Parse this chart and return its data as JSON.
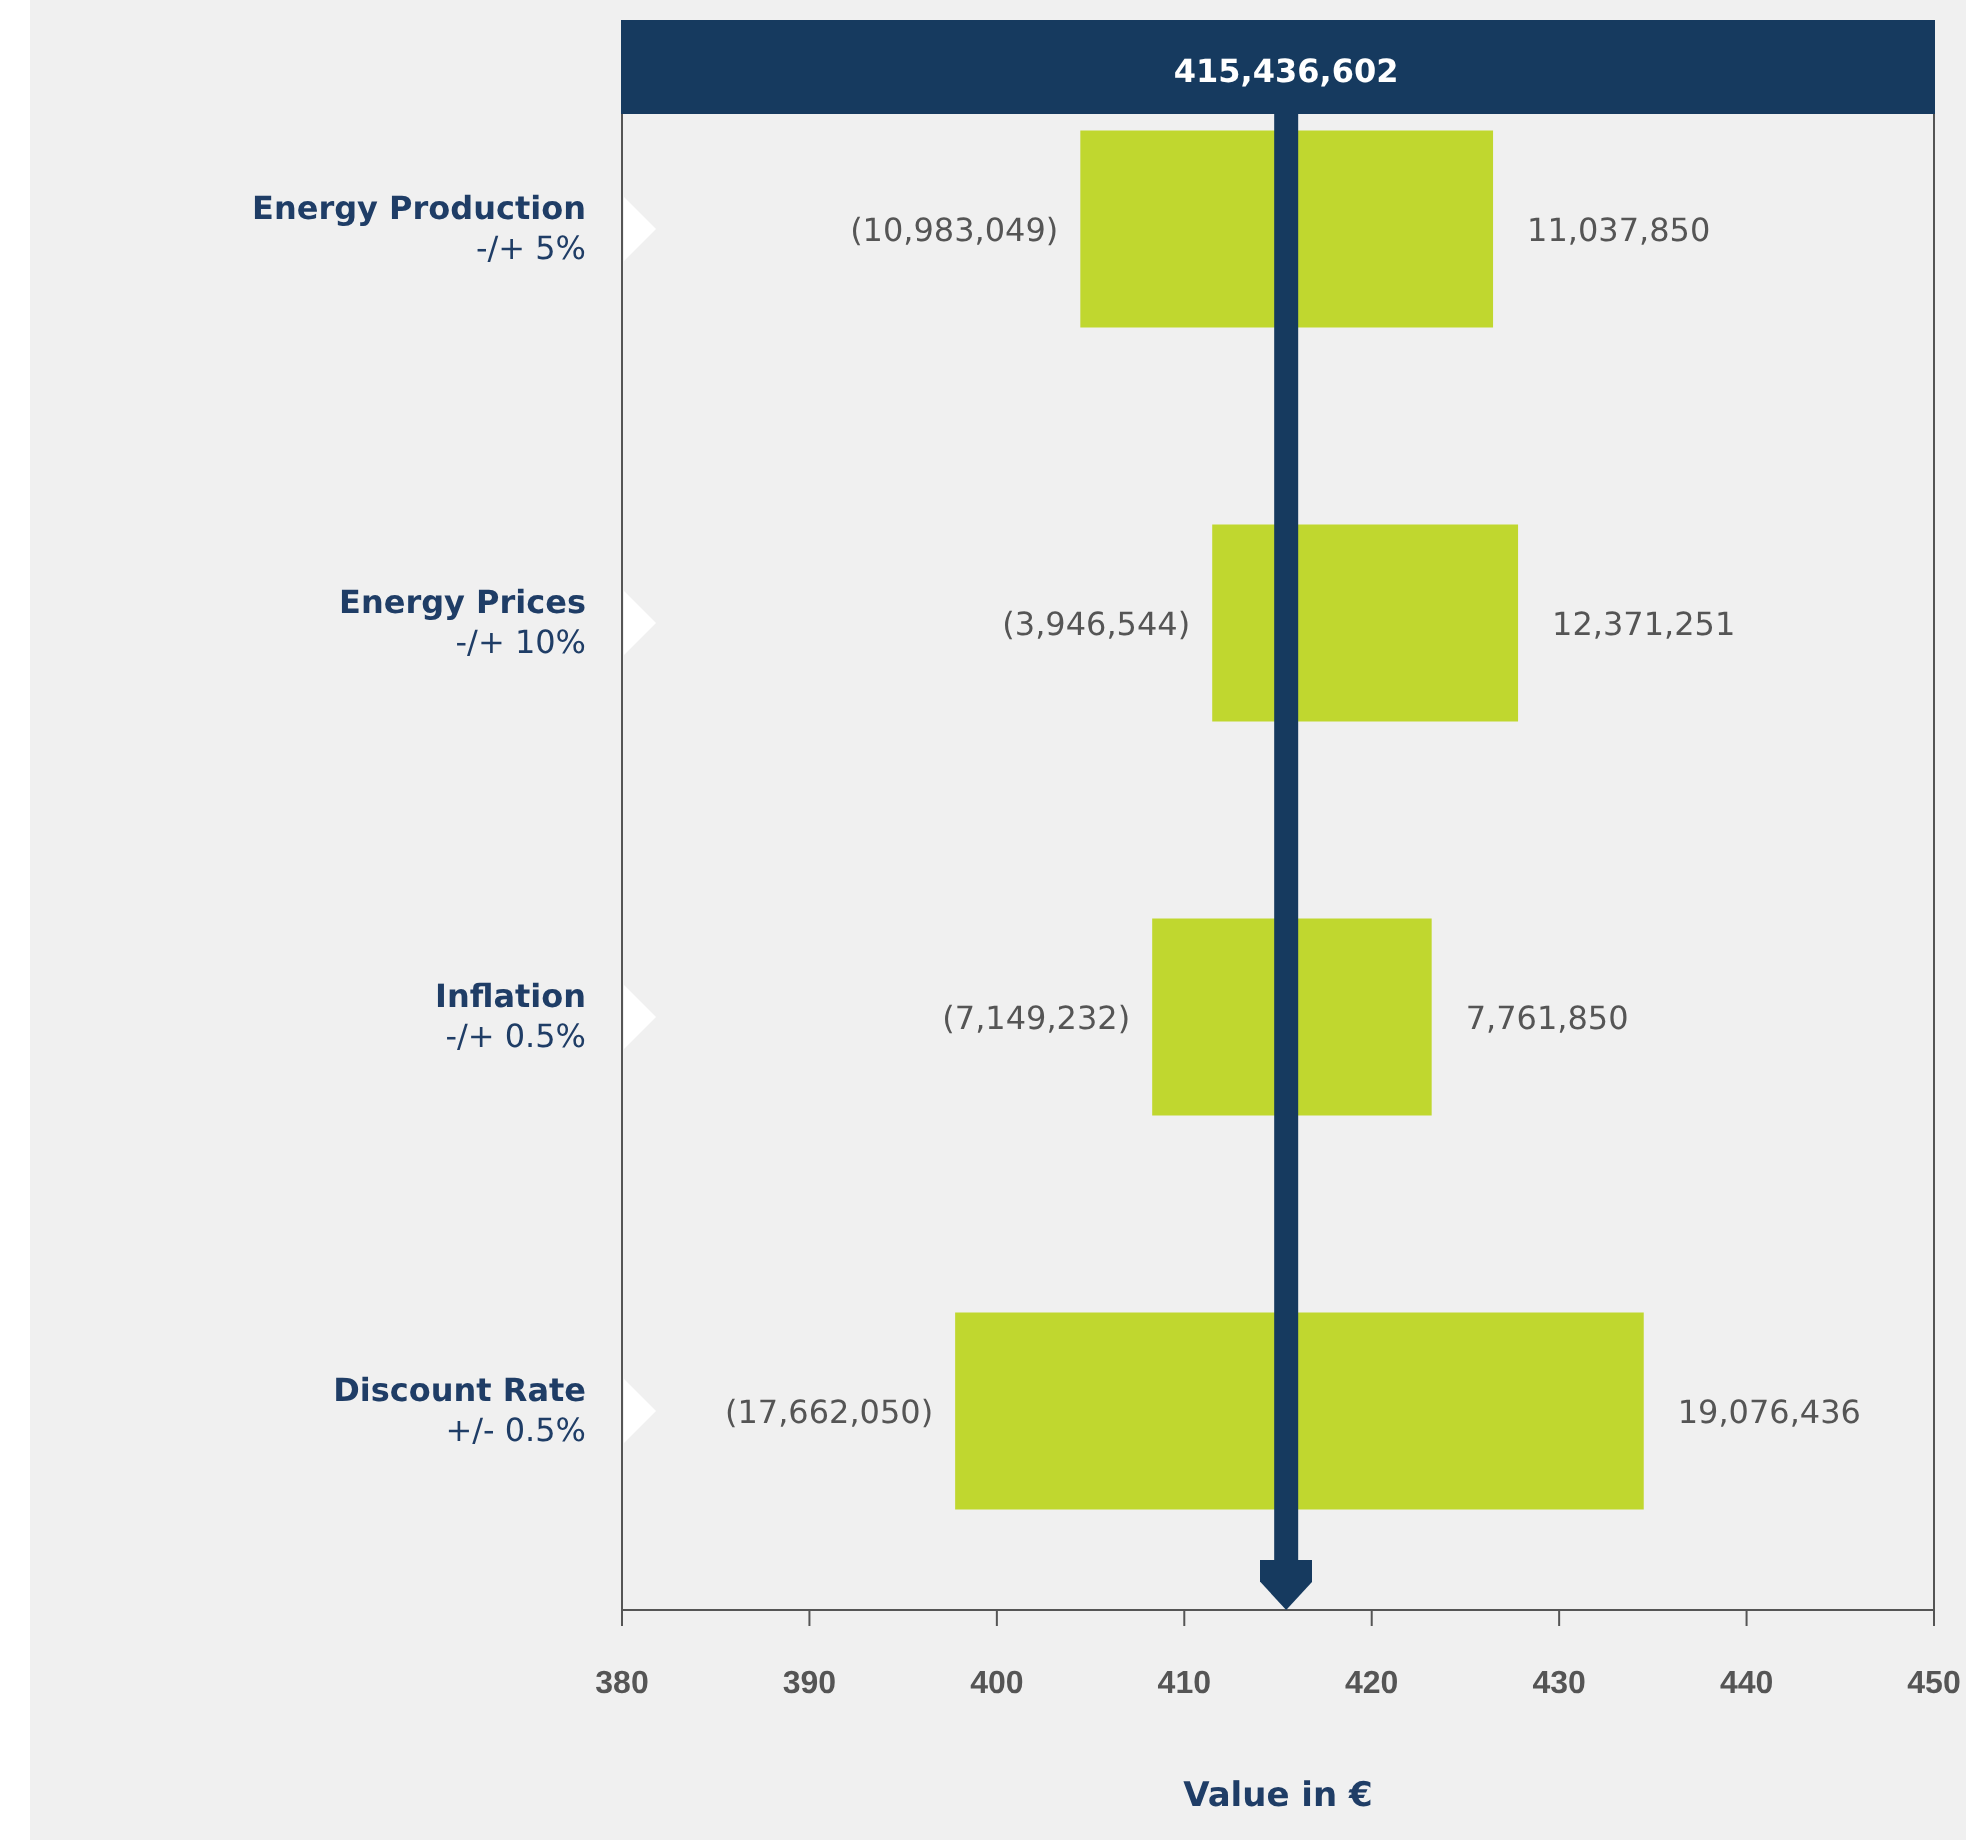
{
  "chart_data": {
    "type": "bar",
    "orientation": "horizontal",
    "categories": [
      "Energy Production\n-/+ 5%",
      "Energy Prices\n-/+ 10%",
      "Inflation\n-/+ 0.5%",
      "Discount Rate\n+/- 0.5%"
    ],
    "series": [
      {
        "color": "#c0d72f",
        "base": [
          415.436602,
          415.436602,
          415.436602,
          415.436602
        ],
        "values": [
          -10.983049,
          -3.946544,
          -7.149232,
          -17.66205
        ]
      },
      {
        "color": "#c0d72f",
        "base": [
          415.436602,
          415.436602,
          415.436602,
          415.436602
        ],
        "values": [
          11.03785,
          12.371251,
          7.76185,
          19.076436
        ]
      }
    ],
    "annotations": [
      {
        "text": "(10,983,049)",
        "x": 404.453553,
        "y": "Energy Production\n-/+ 5%"
      },
      {
        "text": "11,037,850",
        "x": 426.474452,
        "y": "Energy Production\n-/+ 5%"
      },
      {
        "text": "(3,946,544)",
        "x": 411.490058,
        "y": "Energy Prices\n-/+ 10%"
      },
      {
        "text": "12,371,251",
        "x": 427.807853,
        "y": "Energy Prices\n-/+ 10%"
      },
      {
        "text": "(7,149,232)",
        "x": 408.28737,
        "y": "Inflation\n-/+ 0.5%"
      },
      {
        "text": "7,761,850",
        "x": 423.198452,
        "y": "Inflation\n-/+ 0.5%"
      },
      {
        "text": "(17,662,050)",
        "x": 397.774552,
        "y": "Discount Rate\n+/- 0.5%"
      },
      {
        "text": "19,076,436",
        "x": 434.513038,
        "y": "Discount Rate\n+/- 0.5%"
      }
    ],
    "xlabel": "Value in €",
    "xlim": [
      380,
      450
    ],
    "xticks": [
      380,
      390,
      400,
      410,
      420,
      430,
      440,
      450
    ],
    "ref_lines": [
      {
        "axis": "x",
        "value": 415.436602,
        "label": "415,436,602",
        "color": "#163a5f"
      }
    ],
    "grid": false
  }
}
